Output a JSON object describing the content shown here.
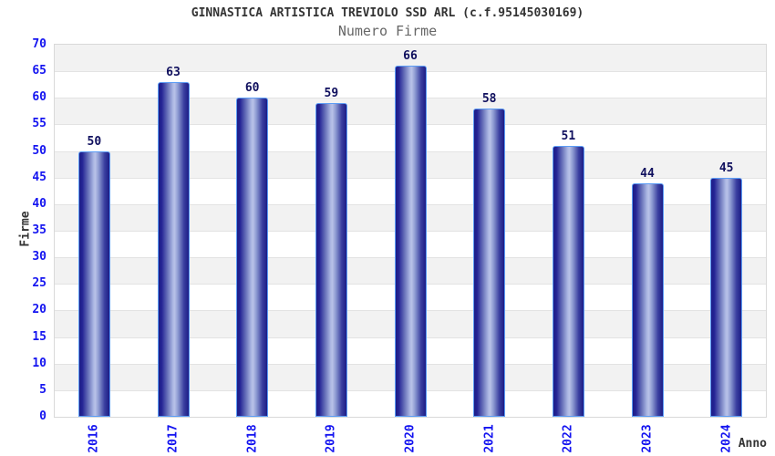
{
  "chart_data": {
    "type": "bar",
    "title": "GINNASTICA ARTISTICA TREVIOLO SSD ARL (c.f.95145030169)",
    "subtitle": "Numero Firme",
    "categories": [
      "2016",
      "2017",
      "2018",
      "2019",
      "2020",
      "2021",
      "2022",
      "2023",
      "2024"
    ],
    "values": [
      50,
      63,
      60,
      59,
      66,
      58,
      51,
      44,
      45
    ],
    "xlabel": "Anno",
    "ylabel": "Firme",
    "ylim": [
      0,
      70
    ],
    "y_ticks": [
      0,
      5,
      10,
      15,
      20,
      25,
      30,
      35,
      40,
      45,
      50,
      55,
      60,
      65,
      70
    ],
    "grid": "horizontal-bands-alternating",
    "legend": "none",
    "colors": {
      "band_gray": "#f2f2f2",
      "band_white": "#ffffff",
      "grid_line": "#e3e3e3",
      "bar_edge_dark": "#1d1d86",
      "bar_center_light": "#b9c2e8",
      "bar_border": "#5b9cf5",
      "tick_label": "#1414f0",
      "value_label": "#10105e",
      "title_color": "#333333",
      "subtitle_color": "#666666"
    }
  }
}
